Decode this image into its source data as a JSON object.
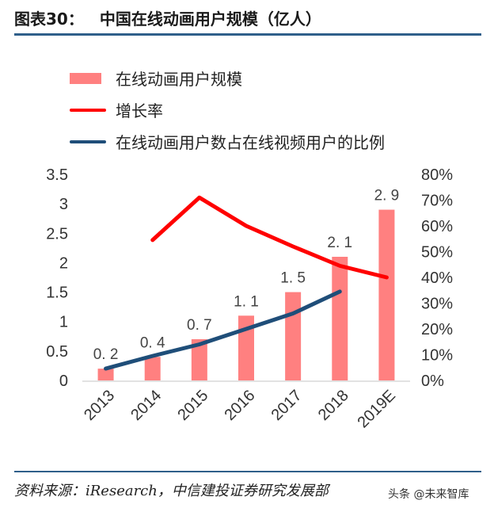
{
  "header": {
    "label": "图表30：",
    "title": "中国在线动画用户规模（亿人）"
  },
  "footer": {
    "source": "资料来源：iResearch，中信建投证券研究发展部",
    "watermark": "头条 @未来智库"
  },
  "chart_data": {
    "type": "bar",
    "categories": [
      "2013",
      "2014",
      "2015",
      "2016",
      "2017",
      "2018",
      "2019E"
    ],
    "ylim": [
      0,
      3.5
    ],
    "y2lim": [
      0,
      0.8
    ],
    "yticks": [
      "0",
      "0.5",
      "1",
      "1.5",
      "2",
      "2.5",
      "3",
      "3.5"
    ],
    "y2ticks": [
      "0%",
      "10%",
      "20%",
      "30%",
      "40%",
      "50%",
      "60%",
      "70%",
      "80%"
    ],
    "legend_placement": "top-left",
    "grid": false,
    "series": [
      {
        "name": "在线动画用户规模",
        "type": "bar",
        "axis": "left",
        "color": "#ff8080",
        "values": [
          0.2,
          0.4,
          0.7,
          1.1,
          1.5,
          2.1,
          2.9
        ],
        "labels": [
          "0.2",
          "0.4",
          "0.7",
          "1.1",
          "1.5",
          "2.1",
          "2.9"
        ]
      },
      {
        "name": "增长率",
        "type": "line",
        "axis": "right",
        "color": "#ff0000",
        "values": [
          null,
          0.545,
          0.71,
          0.6,
          0.52,
          0.445,
          0.4
        ]
      },
      {
        "name": "在线动画用户数占在线视频用户的比例",
        "type": "line",
        "axis": "right",
        "color": "#1f4e79",
        "values": [
          0.046,
          0.095,
          0.14,
          0.2,
          0.26,
          0.345,
          null
        ]
      }
    ]
  }
}
